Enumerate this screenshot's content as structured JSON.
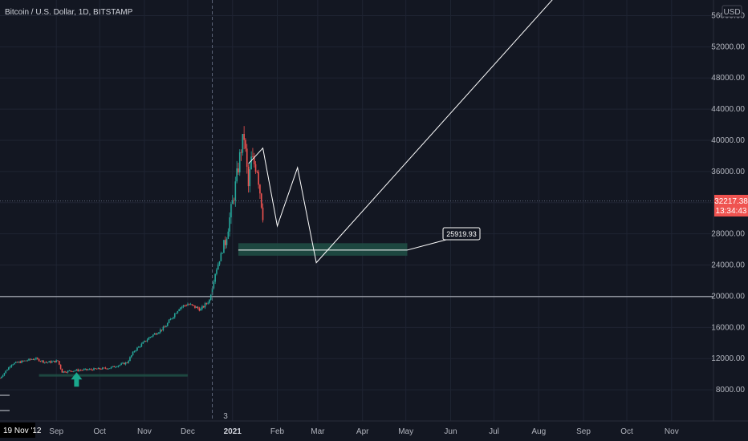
{
  "header": {
    "symbol_title": "Bitcoin / U.S. Dollar, 1D, BITSTAMP",
    "currency_button": "USD"
  },
  "price_axis": {
    "last_price_label": "32217.38",
    "countdown_label": "13:34:43"
  },
  "time_axis": {
    "start_date_label": "19 Nov '12",
    "crosshair_label": "3"
  },
  "annotation": {
    "target_price_label": "25919.93"
  },
  "colors": {
    "background": "#131722",
    "grid": "#1f2433",
    "up_candle": "#26a69a",
    "down_candle": "#ef5350",
    "zone_fill": "#1f4d44",
    "drawing": "#ffffff",
    "axis_text": "#b2b5be",
    "price_badge": "#ef5350"
  },
  "chart_data": {
    "type": "candlestick",
    "title": "Bitcoin / U.S. Dollar, 1D, BITSTAMP",
    "currency": "USD",
    "y_ticks": [
      8000,
      12000,
      16000,
      20000,
      24000,
      28000,
      32000,
      36000,
      40000,
      44000,
      48000,
      52000,
      56000
    ],
    "y_tick_labels": [
      "8000.00",
      "12000.00",
      "16000.00",
      "20000.00",
      "24000.00",
      "28000.00",
      "36000.00",
      "40000.00",
      "44000.00",
      "48000.00",
      "52000.00",
      "56000.00"
    ],
    "ylim": [
      4000,
      58000
    ],
    "x_ticks": [
      "2020-09-01",
      "2020-10-01",
      "2020-11-01",
      "2020-12-01",
      "2021-01-01",
      "2021-02-01",
      "2021-03-01",
      "2021-04-01",
      "2021-05-01",
      "2021-06-01",
      "2021-07-01",
      "2021-08-01",
      "2021-09-01",
      "2021-10-01",
      "2021-11-01"
    ],
    "x_tick_labels": [
      "Sep",
      "Oct",
      "Nov",
      "Dec",
      "2021",
      "Feb",
      "Mar",
      "Apr",
      "May",
      "Jun",
      "Jul",
      "Aug",
      "Sep",
      "Oct",
      "Nov"
    ],
    "x_range": [
      "2020-07-24",
      "2021-11-30"
    ],
    "price_path": [
      [
        "2020-07-24",
        9500
      ],
      [
        "2020-08-01",
        11300
      ],
      [
        "2020-08-10",
        11700
      ],
      [
        "2020-08-17",
        12000
      ],
      [
        "2020-08-25",
        11500
      ],
      [
        "2020-09-02",
        11700
      ],
      [
        "2020-09-05",
        10300
      ],
      [
        "2020-09-15",
        10500
      ],
      [
        "2020-09-25",
        10600
      ],
      [
        "2020-10-08",
        10800
      ],
      [
        "2020-10-20",
        11500
      ],
      [
        "2020-10-25",
        13000
      ],
      [
        "2020-11-05",
        14800
      ],
      [
        "2020-11-15",
        16000
      ],
      [
        "2020-11-25",
        18500
      ],
      [
        "2020-12-01",
        19000
      ],
      [
        "2020-12-10",
        18300
      ],
      [
        "2020-12-16",
        19500
      ],
      [
        "2020-12-20",
        23000
      ],
      [
        "2020-12-27",
        27000
      ],
      [
        "2021-01-02",
        33000
      ],
      [
        "2021-01-07",
        39000
      ],
      [
        "2021-01-09",
        40500
      ],
      [
        "2021-01-12",
        34000
      ],
      [
        "2021-01-14",
        37500
      ],
      [
        "2021-01-18",
        36500
      ],
      [
        "2021-01-21",
        32000
      ],
      [
        "2021-01-22",
        30500
      ]
    ],
    "current_price": 32217.38,
    "support_zones": [
      {
        "from": "2020-08-20",
        "to": "2020-12-01",
        "low": 9700,
        "high": 10000
      },
      {
        "from": "2021-01-05",
        "to": "2021-05-02",
        "low": 25200,
        "high": 26800
      }
    ],
    "horizontal_lines": [
      32217.38,
      19950
    ],
    "projection_path": [
      [
        "2021-01-12",
        37000
      ],
      [
        "2021-01-22",
        39000
      ],
      [
        "2021-02-01",
        29000
      ],
      [
        "2021-02-15",
        36500
      ],
      [
        "2021-02-28",
        24300
      ],
      [
        "2021-08-20",
        60000
      ]
    ],
    "target_line": {
      "from": "2021-01-05",
      "to": "2021-05-02",
      "value": 25919.93,
      "label": "25919.93"
    },
    "marker": {
      "type": "arrow-up",
      "date": "2020-09-15",
      "value": 8600
    },
    "crosshair_date": "2020-12-18"
  }
}
